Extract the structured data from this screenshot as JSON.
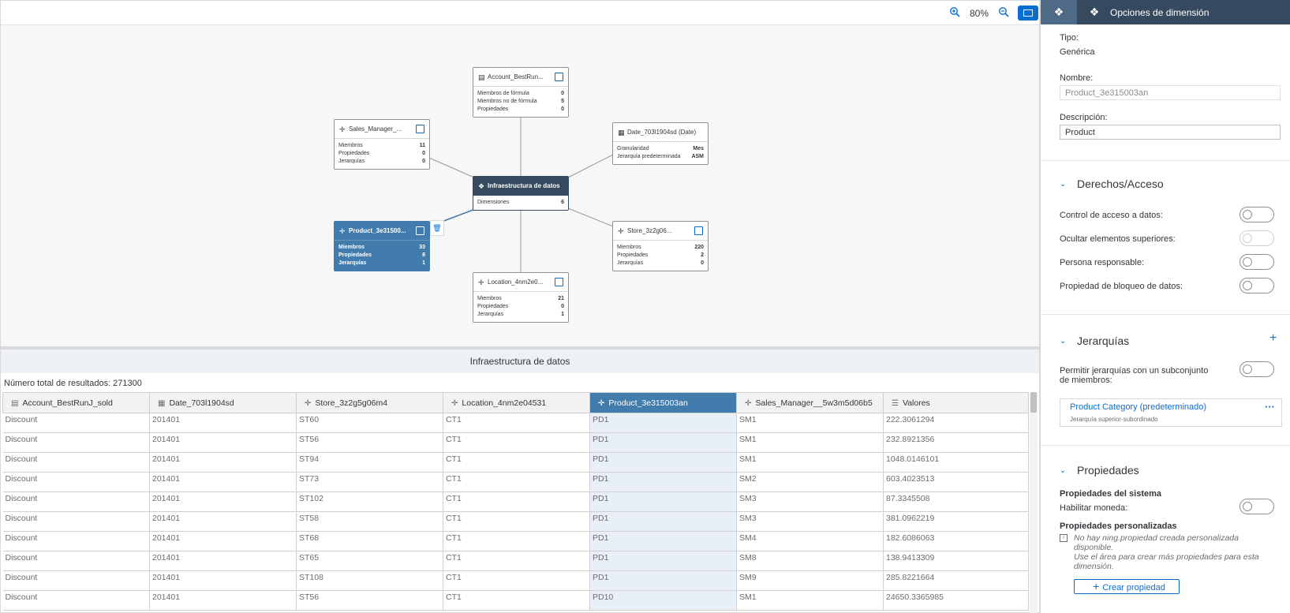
{
  "toolbar": {
    "zoom_in_icon": "zoom-in-icon",
    "zoom_level": "80%",
    "zoom_out_icon": "zoom-out-icon"
  },
  "diagram": {
    "center": {
      "title": "Infraestructura de datos",
      "rows": [
        {
          "label": "Dimensiones",
          "value": "6"
        }
      ]
    },
    "nodes": {
      "account": {
        "title": "Account_BestRun...",
        "rows": [
          {
            "label": "Miembros de fórmula",
            "value": "0"
          },
          {
            "label": "Miembros no de fórmula",
            "value": "5"
          },
          {
            "label": "Propiedades",
            "value": "0"
          }
        ]
      },
      "sales": {
        "title": "Sales_Manager_...",
        "rows": [
          {
            "label": "Miembros",
            "value": "11"
          },
          {
            "label": "Propiedades",
            "value": "0"
          },
          {
            "label": "Jerarquías",
            "value": "0"
          }
        ]
      },
      "date": {
        "title": "Date_703l1904sd (Date)",
        "rows": [
          {
            "label": "Granularidad",
            "value": "Mes"
          },
          {
            "label": "Jerarquía predeterminada",
            "value": "ASM"
          }
        ]
      },
      "product": {
        "title": "Product_3e31500...",
        "rows": [
          {
            "label": "Miembros",
            "value": "33"
          },
          {
            "label": "Propiedades",
            "value": "8"
          },
          {
            "label": "Jerarquías",
            "value": "1"
          }
        ]
      },
      "store": {
        "title": "Store_3z2g06...",
        "rows": [
          {
            "label": "Miembros",
            "value": "220"
          },
          {
            "label": "Propiedades",
            "value": "2"
          },
          {
            "label": "Jerarquías",
            "value": "0"
          }
        ]
      },
      "location": {
        "title": "Location_4nm2e0...",
        "rows": [
          {
            "label": "Miembros",
            "value": "21"
          },
          {
            "label": "Propiedades",
            "value": "0"
          },
          {
            "label": "Jerarquías",
            "value": "1"
          }
        ]
      }
    }
  },
  "table_section": {
    "title": "Infraestructura de datos",
    "result_count": "Número total de resultados: 271300",
    "columns": [
      "Account_BestRunJ_sold",
      "Date_703l1904sd",
      "Store_3z2g5g06m4",
      "Location_4nm2e04531",
      "Product_3e315003an",
      "Sales_Manager__5w3m5d06b5",
      "Valores"
    ],
    "rows": [
      [
        "Discount",
        "201401",
        "ST60",
        "CT1",
        "PD1",
        "SM1",
        "222.3061294"
      ],
      [
        "Discount",
        "201401",
        "ST56",
        "CT1",
        "PD1",
        "SM1",
        "232.8921356"
      ],
      [
        "Discount",
        "201401",
        "ST94",
        "CT1",
        "PD1",
        "SM1",
        "1048.0146101"
      ],
      [
        "Discount",
        "201401",
        "ST73",
        "CT1",
        "PD1",
        "SM2",
        "603.4023513"
      ],
      [
        "Discount",
        "201401",
        "ST102",
        "CT1",
        "PD1",
        "SM3",
        "87.3345508"
      ],
      [
        "Discount",
        "201401",
        "ST58",
        "CT1",
        "PD1",
        "SM3",
        "381.0962219"
      ],
      [
        "Discount",
        "201401",
        "ST68",
        "CT1",
        "PD1",
        "SM4",
        "182.6086063"
      ],
      [
        "Discount",
        "201401",
        "ST65",
        "CT1",
        "PD1",
        "SM8",
        "138.9413309"
      ],
      [
        "Discount",
        "201401",
        "ST108",
        "CT1",
        "PD1",
        "SM9",
        "285.8221664"
      ],
      [
        "Discount",
        "201401",
        "ST56",
        "CT1",
        "PD10",
        "SM1",
        "24650.3365985"
      ]
    ]
  },
  "panel": {
    "title": "Opciones de dimensión",
    "tipo_label": "Tipo:",
    "tipo_value": "Genérica",
    "nombre_label": "Nombre:",
    "nombre_value": "Product_3e315003an",
    "descripcion_label": "Descripción:",
    "descripcion_value": "Product",
    "derechos": {
      "title": "Derechos/Acceso",
      "items": [
        "Control de acceso a datos:",
        "Ocultar elementos superiores:",
        "Persona responsable:",
        "Propiedad de bloqueo de datos:"
      ]
    },
    "jerarquias": {
      "title": "Jerarquías",
      "subset_label": "Permitir jerarquías con un subconjunto de miembros:",
      "hierarchy_name": "Product Category (predeterminado)",
      "hierarchy_type": "Jerarquía superior-subordinado"
    },
    "propiedades": {
      "title": "Propiedades",
      "system_title": "Propiedades del sistema",
      "currency_label": "Habilitar moneda:",
      "custom_title": "Propiedades personalizadas",
      "no_props_line1": "No hay ning.propiedad creada personalizada disponible.",
      "no_props_line2": "Use el área para crear más propiedades para esta dimensión.",
      "create_button": "Crear propiedad"
    }
  }
}
